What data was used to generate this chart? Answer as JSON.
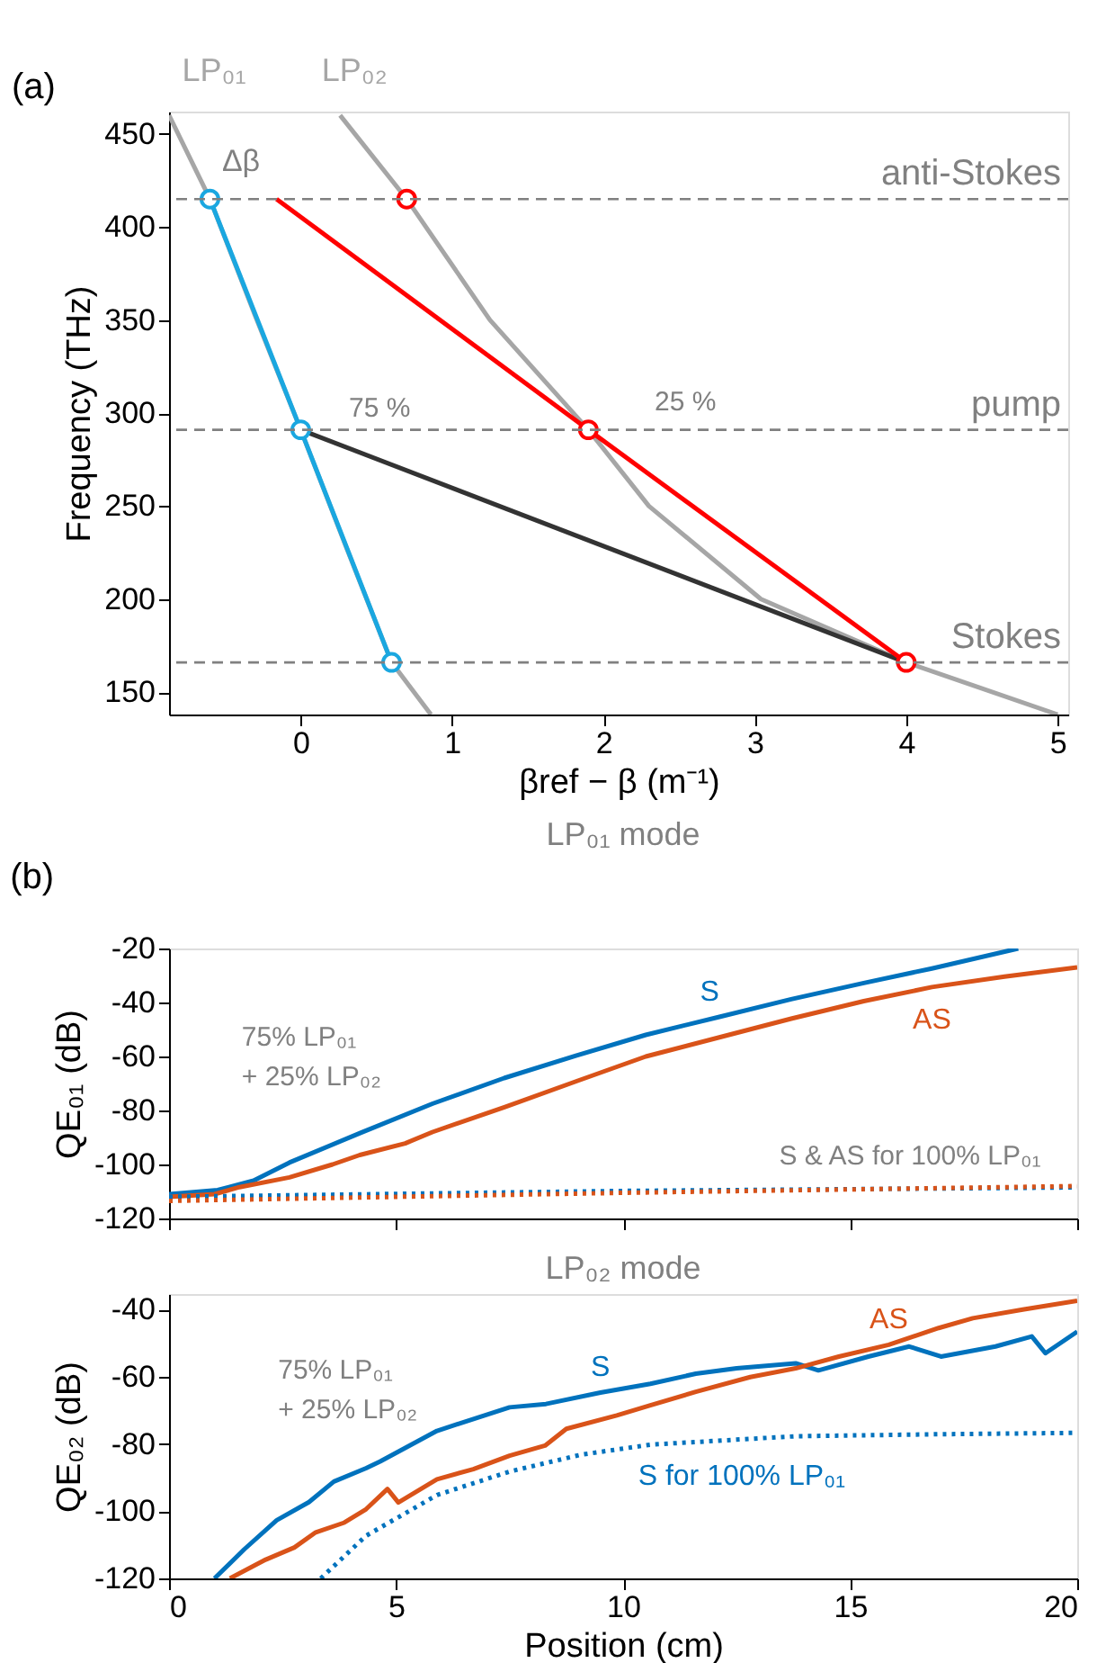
{
  "chart_data": [
    {
      "type": "line",
      "xlabel": "βref − β (m⁻¹)",
      "ylabel": "Frequency (THz)",
      "xlim": [
        -0.87,
        5.07
      ],
      "ylim": [
        138,
        462
      ],
      "xticks": [
        0,
        1,
        2,
        3,
        4,
        5
      ],
      "yticks": [
        150,
        200,
        250,
        300,
        350,
        400,
        450
      ],
      "grid": false,
      "series": [
        {
          "name": "LP₀₁",
          "color": "#a6a6a6",
          "x": [
            -0.87,
            -0.6,
            -0.3,
            0,
            0.3,
            0.6,
            0.86
          ],
          "values": [
            460,
            415,
            352,
            291,
            228,
            166,
            138
          ]
        },
        {
          "name": "LP₀₂",
          "color": "#a6a6a6",
          "x": [
            0.26,
            0.7,
            1.25,
            1.9,
            2.3,
            3.04,
            4.0,
            5.0
          ],
          "values": [
            460,
            415,
            350,
            291,
            250,
            200,
            166,
            138
          ]
        },
        {
          "color": "#1aa7e0",
          "x": [
            0.6,
            0
          ],
          "values": [
            166,
            291
          ]
        },
        {
          "color": "#1aa7e0",
          "x": [
            0,
            -0.6
          ],
          "values": [
            291,
            415
          ]
        },
        {
          "color": "#333333",
          "x": [
            4.0,
            0
          ],
          "values": [
            166,
            291
          ]
        },
        {
          "color": "#ff0000",
          "x": [
            4.0,
            1.9
          ],
          "values": [
            166,
            291
          ]
        },
        {
          "color": "#ff0000",
          "x": [
            1.9,
            -0.16
          ],
          "values": [
            291,
            415
          ]
        },
        {
          "type": "scatter",
          "marker": "circle",
          "color": "#1aa7e0",
          "x": [
            -0.6,
            0,
            0.6
          ],
          "values": [
            415,
            291,
            166
          ]
        },
        {
          "type": "scatter",
          "marker": "circle",
          "color": "#ff0000",
          "x": [
            0.7,
            1.9,
            4.0
          ],
          "values": [
            415,
            291,
            166
          ]
        }
      ],
      "ref_lines": [
        {
          "axis": "y",
          "value": 415,
          "label": "anti-Stokes",
          "color": "#808080",
          "line_style": "dashed"
        },
        {
          "axis": "y",
          "value": 291,
          "label": "pump",
          "color": "#808080",
          "line_style": "dashed"
        },
        {
          "axis": "y",
          "value": 166,
          "label": "Stokes",
          "color": "#808080",
          "line_style": "dashed"
        }
      ],
      "annotations": [
        "(a)",
        "75 %",
        "25 %",
        "Δβ"
      ]
    },
    {
      "type": "line",
      "title": "LP₀₁ mode",
      "ylabel": "QE₀₁ (dB)",
      "xlim": [
        0,
        20
      ],
      "ylim": [
        -120,
        -20
      ],
      "xticks": [
        0,
        5,
        10,
        15,
        20
      ],
      "yticks": [
        -120,
        -100,
        -80,
        -60,
        -40,
        -20
      ],
      "tick_labels": "y",
      "grid": false,
      "series": [
        {
          "name": "S",
          "color": "#0072bd",
          "x": [
            0,
            1.07,
            1.86,
            2.65,
            4.23,
            5.8,
            7.38,
            8.96,
            10.5,
            12.1,
            13.7,
            15.3,
            16.8,
            18.7
          ],
          "values": [
            -111,
            -109.5,
            -106,
            -99.3,
            -88.2,
            -77.5,
            -68,
            -59.7,
            -52,
            -45.4,
            -38.8,
            -32.8,
            -27.4,
            -20
          ]
        },
        {
          "name": "AS",
          "color": "#d95319",
          "x": [
            0,
            1.0,
            1.55,
            2.65,
            3.6,
            4.2,
            5.2,
            5.8,
            7.4,
            9,
            10.5,
            12.1,
            13.7,
            15.3,
            16.8,
            18.4,
            20
          ],
          "values": [
            -112,
            -111,
            -108.4,
            -104.8,
            -100,
            -96.5,
            -92.2,
            -88,
            -78.7,
            -69,
            -60,
            -53,
            -46,
            -39.5,
            -34.3,
            -30.4,
            -27
          ]
        },
        {
          "color": "#0072bd",
          "line_style": "dotted",
          "x": [
            0,
            10,
            20
          ],
          "values": [
            -112,
            -109.8,
            -108.5
          ]
        },
        {
          "color": "#d95319",
          "line_style": "dotted",
          "x": [
            0,
            10,
            20
          ],
          "values": [
            -113.5,
            -110.5,
            -108
          ]
        }
      ],
      "annotations": [
        "(b)",
        "S & AS for 100% LP₀₁",
        "75% LP₀₁\n+ 25% LP₀₂"
      ]
    },
    {
      "type": "line",
      "title": "LP₀₂ mode",
      "xlabel": "Position (cm)",
      "ylabel": "QE₀₂ (dB)",
      "xlim": [
        0,
        20
      ],
      "ylim": [
        -120,
        -35.4
      ],
      "xticks": [
        0,
        5,
        10,
        15,
        20
      ],
      "yticks": [
        -120,
        -100,
        -80,
        -60,
        -40
      ],
      "grid": false,
      "series": [
        {
          "name": "S",
          "color": "#0072bd",
          "x": [
            1.0,
            1.66,
            2.37,
            3.08,
            3.63,
            4.34,
            4.65,
            5.9,
            7.5,
            8.3,
            9.5,
            10.6,
            11.6,
            12.5,
            13.8,
            14.3,
            15.4,
            16.3,
            17,
            18.2,
            19,
            19.3,
            20
          ],
          "values": [
            -120,
            -111.3,
            -102.7,
            -97.3,
            -91.2,
            -87.2,
            -85.2,
            -76.1,
            -69.1,
            -68.1,
            -64.7,
            -62.1,
            -59.1,
            -57.5,
            -56,
            -58.1,
            -54,
            -51,
            -54,
            -51,
            -48,
            -53,
            -46.6
          ]
        },
        {
          "name": "AS",
          "color": "#d95319",
          "x": [
            1.34,
            2.13,
            2.76,
            3.23,
            3.86,
            4.34,
            4.81,
            5.05,
            5.9,
            6.7,
            7.5,
            8.28,
            8.75,
            9.86,
            10.6,
            11.6,
            12.8,
            13.8,
            14.75,
            15.85,
            16.95,
            17.7,
            18.8,
            20
          ],
          "values": [
            -120,
            -114.4,
            -110.8,
            -106.3,
            -103.4,
            -99.4,
            -93.4,
            -97.4,
            -90.5,
            -87.5,
            -83.5,
            -80.5,
            -75.5,
            -71.5,
            -68.5,
            -64.5,
            -60.1,
            -57.5,
            -54,
            -50.5,
            -45.5,
            -42.6,
            -40,
            -37.4
          ]
        },
        {
          "name": "S for 100% LP₀₁",
          "color": "#0072bd",
          "line_style": "dotted",
          "x": [
            3.34,
            4.34,
            5.9,
            7.5,
            9.07,
            10.6,
            13.8,
            17,
            20
          ],
          "values": [
            -120,
            -107.3,
            -95.2,
            -88.2,
            -83.2,
            -80.2,
            -77.7,
            -77.1,
            -76.7
          ]
        }
      ],
      "annotations": [
        "75% LP₀₁\n+ 25% LP₀₂"
      ]
    }
  ]
}
